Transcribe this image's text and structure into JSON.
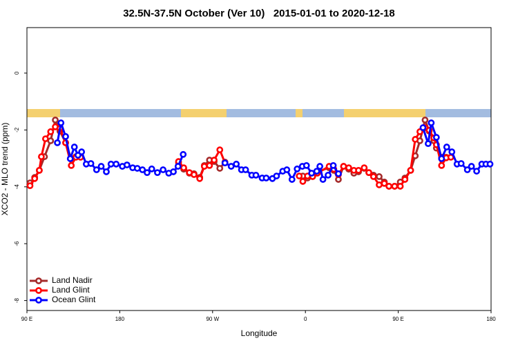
{
  "chart_data": {
    "type": "line",
    "title": "32.5N-37.5N October (Ver 10)   2015-01-01 to 2020-12-18",
    "x_label": "Longitude",
    "y_label": "XCO2 - MLO trend (ppm)",
    "xlim": [
      90,
      540
    ],
    "xticks": [
      {
        "value": 90,
        "label": "90 E"
      },
      {
        "value": 180,
        "label": "180"
      },
      {
        "value": 270,
        "label": "90 W"
      },
      {
        "value": 360,
        "label": "0"
      },
      {
        "value": 450,
        "label": "90 E"
      },
      {
        "value": 540,
        "label": "180"
      }
    ],
    "ylim": [
      -8.35,
      1.6
    ],
    "yticks": [
      0,
      -2,
      -4,
      -6,
      -8
    ],
    "legend": "bottom left",
    "series": [
      {
        "name": "Land Nadir",
        "color": "#a52a2a",
        "x": [
          93,
          97.5,
          102,
          107,
          113,
          117.5,
          122,
          127.5,
          133,
          137.5,
          null,
          237,
          242,
          247.5,
          252,
          257.5,
          262,
          267,
          271.5,
          277,
          282,
          null,
          357.5,
          362,
          367,
          371.5,
          383,
          387.5,
          392,
          397,
          402,
          407,
          411.5,
          417,
          421.5,
          426,
          431.5,
          436.5,
          441,
          446.5,
          452,
          456.5,
          462,
          466.5,
          471,
          476,
          480,
          484.5,
          487,
          492,
          496.5
        ],
        "values": [
          -3.86,
          -3.67,
          -3.42,
          -2.94,
          -2.38,
          -1.65,
          -2.04,
          -2.45,
          -3.01,
          -2.94,
          null,
          -3.16,
          -3.38,
          -3.52,
          -3.54,
          -3.67,
          -3.25,
          -3.06,
          -3.11,
          -3.35,
          -3.13,
          null,
          -3.62,
          -3.69,
          -3.62,
          -3.47,
          -3.33,
          -3.42,
          -3.74,
          -3.28,
          -3.38,
          -3.52,
          -3.47,
          -3.35,
          -3.5,
          -3.59,
          -3.64,
          -3.83,
          -3.98,
          -3.98,
          -3.83,
          -3.69,
          -3.42,
          -2.91,
          -2.38,
          -1.65,
          -2.04,
          -2.38,
          -2.64,
          -2.96,
          -2.96
        ]
      },
      {
        "name": "Land Glint",
        "color": "#ff0000",
        "x": [
          93,
          97.5,
          102,
          104,
          108,
          113,
          117.5,
          122,
          127.5,
          133,
          137.5,
          142,
          null,
          237,
          242,
          247.5,
          252,
          257.5,
          262,
          267,
          271.5,
          277,
          282,
          null,
          354,
          357.5,
          362,
          367,
          371.5,
          383,
          387.5,
          392,
          397,
          402,
          407,
          411.5,
          417,
          421.5,
          426,
          431.5,
          436.5,
          441,
          446.5,
          452,
          456.5,
          462,
          466.5,
          471,
          476,
          480,
          484.5,
          487,
          492,
          496.5,
          501
        ],
        "values": [
          -3.96,
          -3.71,
          -3.42,
          -2.94,
          -2.31,
          -2.06,
          -1.89,
          -1.94,
          -2.45,
          -3.25,
          -2.96,
          -2.96,
          null,
          -3.11,
          -3.33,
          -3.5,
          -3.57,
          -3.71,
          -3.28,
          -3.25,
          -3.06,
          -2.7,
          -3.16,
          null,
          -3.62,
          -3.81,
          -3.62,
          -3.64,
          -3.52,
          -3.28,
          -3.38,
          -3.57,
          -3.28,
          -3.33,
          -3.42,
          -3.42,
          -3.33,
          -3.5,
          -3.64,
          -3.93,
          -3.88,
          -3.98,
          -3.98,
          -3.98,
          -3.74,
          -3.42,
          -2.33,
          -2.06,
          -1.92,
          -2.01,
          -2.28,
          -2.52,
          -3.25,
          -2.98,
          -2.96
        ]
      },
      {
        "name": "Ocean Glint",
        "color": "#0000ff",
        "x": [
          119.5,
          123,
          127.5,
          132,
          136,
          139.5,
          143,
          147.5,
          152,
          157.5,
          162,
          167,
          171.5,
          176.5,
          182.5,
          187,
          192.5,
          197,
          202,
          206.5,
          211,
          216.5,
          222,
          227.5,
          232,
          236.5,
          241.5,
          null,
          282,
          288,
          293,
          298,
          302,
          308,
          312,
          318,
          322,
          328,
          332,
          338,
          342,
          347,
          352,
          357,
          361,
          366,
          371,
          374,
          377,
          382,
          387,
          392,
          null,
          474,
          479,
          482,
          487,
          492,
          497,
          502,
          507,
          511,
          517,
          521,
          526,
          531,
          535,
          539
        ],
        "values": [
          -2.45,
          -1.75,
          -2.23,
          -3.01,
          -2.6,
          -2.89,
          -2.77,
          -3.2,
          -3.18,
          -3.4,
          -3.28,
          -3.47,
          -3.2,
          -3.2,
          -3.28,
          -3.23,
          -3.33,
          -3.35,
          -3.4,
          -3.5,
          -3.37,
          -3.5,
          -3.4,
          -3.52,
          -3.47,
          -3.28,
          -2.86,
          null,
          -3.16,
          -3.28,
          -3.2,
          -3.4,
          -3.4,
          -3.59,
          -3.59,
          -3.69,
          -3.69,
          -3.71,
          -3.62,
          -3.45,
          -3.4,
          -3.74,
          -3.37,
          -3.28,
          -3.25,
          -3.52,
          -3.45,
          -3.28,
          -3.74,
          -3.59,
          -3.25,
          -3.54,
          null,
          -1.92,
          -2.48,
          -1.75,
          -2.26,
          -3.01,
          -2.6,
          -2.77,
          -3.2,
          -3.18,
          -3.4,
          -3.28,
          -3.45,
          -3.2,
          -3.2,
          -3.2
        ]
      }
    ]
  }
}
